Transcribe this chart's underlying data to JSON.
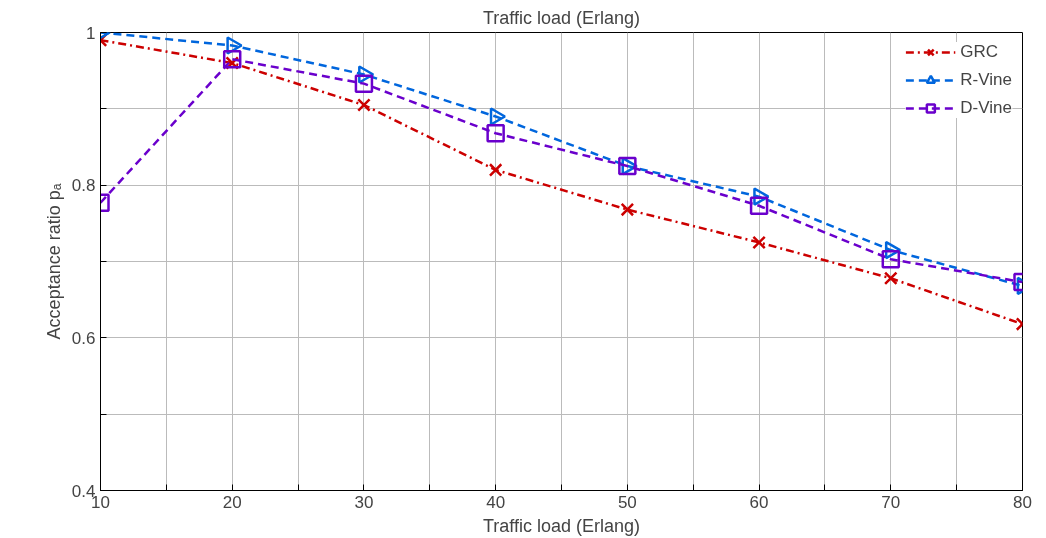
{
  "chart_data": {
    "type": "line",
    "xlabel": "Traffic load (Erlang)",
    "ylabel": "Acceptance ratio pₐ",
    "x2label": "Traffic load (Erlang)",
    "x": [
      10,
      20,
      30,
      40,
      50,
      60,
      70,
      80
    ],
    "series": [
      {
        "name": "GRC",
        "color": "#cc0000",
        "marker": "cross",
        "line_style": "dashdot",
        "values": [
          0.99,
          0.96,
          0.905,
          0.82,
          0.768,
          0.725,
          0.678,
          0.618
        ]
      },
      {
        "name": "R-Vine",
        "color": "#0066dd",
        "marker": "triangle",
        "line_style": "dashed",
        "values": [
          1.0,
          0.983,
          0.945,
          0.89,
          0.825,
          0.785,
          0.715,
          0.668
        ]
      },
      {
        "name": "D-Vine",
        "color": "#6a00cc",
        "marker": "square",
        "line_style": "dashed",
        "values": [
          0.777,
          0.965,
          0.933,
          0.868,
          0.825,
          0.773,
          0.703,
          0.673
        ]
      }
    ],
    "xlim": [
      10,
      80
    ],
    "ylim": [
      0.4,
      1
    ],
    "xticks": [
      10,
      {
        "value": 15,
        "label": null
      },
      20,
      {
        "value": 25,
        "label": null
      },
      30,
      {
        "value": 35,
        "label": null
      },
      40,
      {
        "value": 45,
        "label": null
      },
      50,
      {
        "value": 55,
        "label": null
      },
      60,
      {
        "value": 65,
        "label": null
      },
      70,
      {
        "value": 75,
        "label": null
      },
      80
    ],
    "yticks": [
      0.4,
      {
        "value": 0.5,
        "label": null
      },
      0.6,
      {
        "value": 0.7,
        "label": null
      },
      0.8,
      {
        "value": 0.9,
        "label": null
      },
      1
    ],
    "grid": true,
    "legend": "top right"
  }
}
